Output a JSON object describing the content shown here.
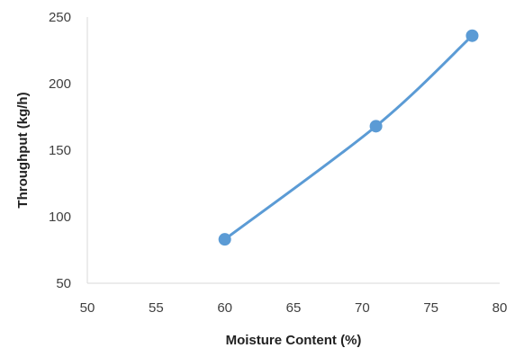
{
  "chart_data": {
    "type": "line",
    "title": "",
    "xlabel": "Moisture Content (%)",
    "ylabel": "Throughput (kg/h)",
    "xlim": [
      50,
      80
    ],
    "ylim": [
      50,
      250
    ],
    "x_ticks": [
      "50",
      "55",
      "60",
      "65",
      "70",
      "75",
      "80"
    ],
    "y_ticks": [
      "50",
      "100",
      "150",
      "200",
      "250"
    ],
    "grid": false,
    "legend": "none",
    "smooth": true,
    "series": [
      {
        "x": [
          60,
          71,
          78
        ],
        "y": [
          83,
          168,
          236
        ],
        "color": "#5B9BD5"
      }
    ]
  }
}
